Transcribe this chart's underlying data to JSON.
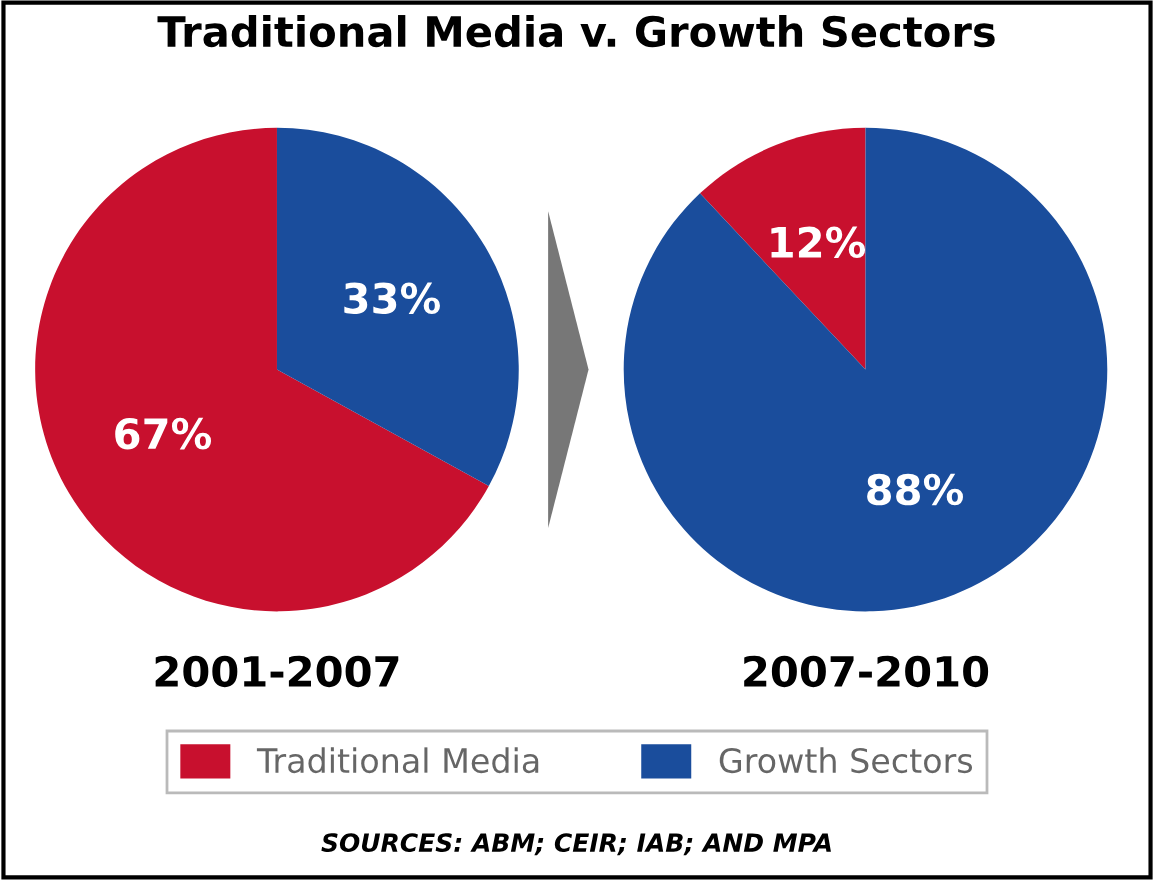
{
  "chart_data": [
    {
      "type": "pie",
      "title": "Traditional Media v. Growth Sectors",
      "xlabel": "2001-2007",
      "categories": [
        "Traditional Media",
        "Growth Sectors"
      ],
      "values": [
        67,
        33
      ],
      "colors": [
        "#c8102e",
        "#1a4d9c"
      ],
      "value_labels": [
        "67%",
        "33%"
      ],
      "legend": "bottom",
      "annotations": [
        "SOURCES: ABM; CEIR; IAB; AND MPA"
      ]
    },
    {
      "type": "pie",
      "xlabel": "2007-2010",
      "categories": [
        null,
        null
      ],
      "values": [
        12,
        88
      ],
      "colors": [
        "#c8102e",
        "#1a4d9c"
      ],
      "value_labels": [
        "12%",
        "88%"
      ]
    }
  ]
}
